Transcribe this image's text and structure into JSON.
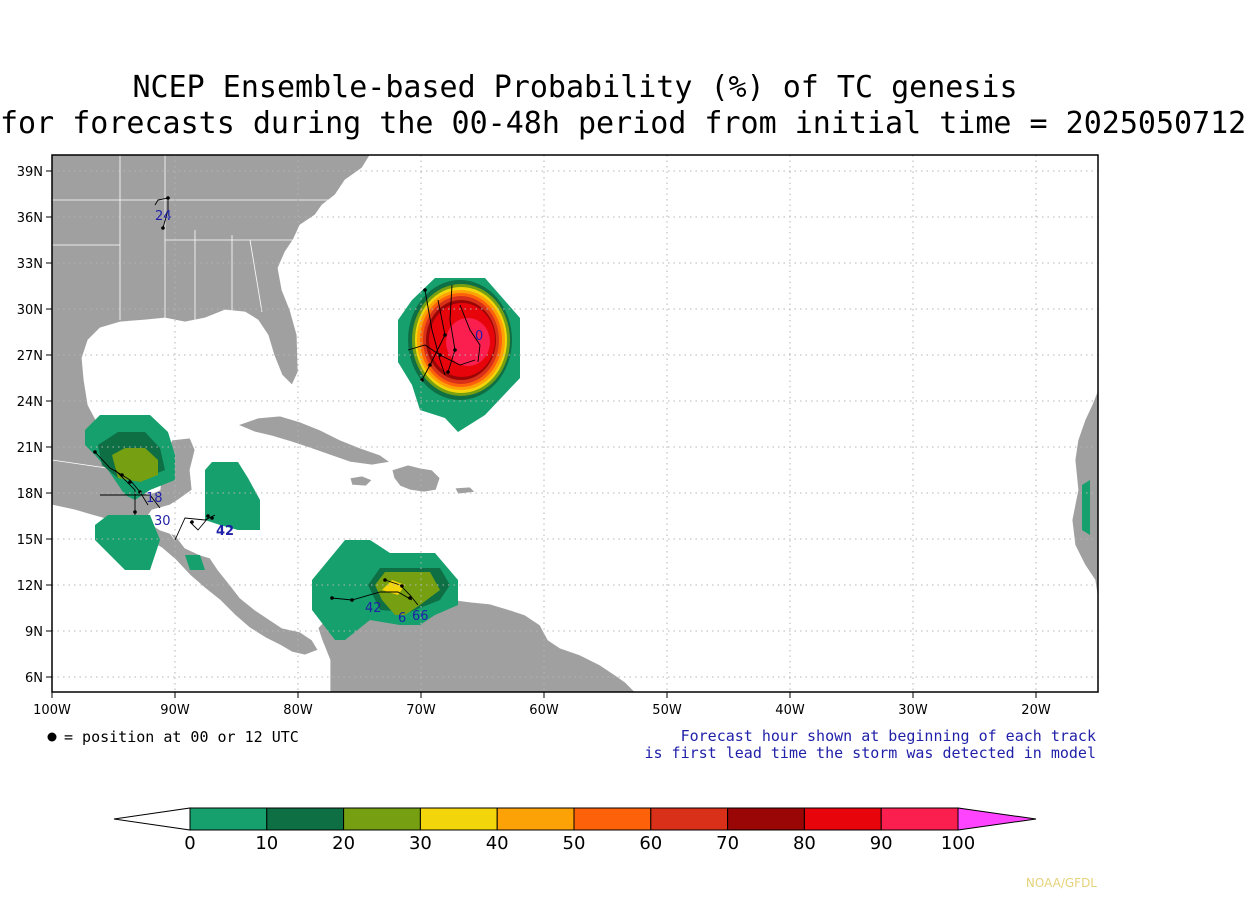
{
  "title": {
    "line1": "NCEP Ensemble-based Probability (%) of TC genesis",
    "line2": "for forecasts during the 00-48h period from initial time = 2025050712"
  },
  "lat_labels": [
    "39N",
    "36N",
    "33N",
    "30N",
    "27N",
    "24N",
    "21N",
    "18N",
    "15N",
    "12N",
    "9N",
    "6N"
  ],
  "lon_labels": [
    "100W",
    "90W",
    "80W",
    "70W",
    "60W",
    "50W",
    "40W",
    "30W",
    "20W"
  ],
  "legend": {
    "position_note": "= position at 00 or 12 UTC",
    "forecast_note_1": "Forecast hour shown at beginning of each track",
    "forecast_note_2": "is first lead time the storm was detected in model"
  },
  "colorbar": {
    "labels": [
      "0",
      "10",
      "20",
      "30",
      "40",
      "50",
      "60",
      "70",
      "80",
      "90",
      "100"
    ],
    "colors": [
      "#16a06e",
      "#0e6f45",
      "#76a011",
      "#f2d50a",
      "#fca206",
      "#fd620b",
      "#d9301a",
      "#9a0505",
      "#e8040b",
      "#fb1f4f"
    ],
    "over_color": "#ff44ff",
    "under_color": "#ffffff"
  },
  "track_labels": [
    {
      "text": "24"
    },
    {
      "text": "18"
    },
    {
      "text": "30"
    },
    {
      "text": "42"
    },
    {
      "text": "42"
    },
    {
      "text": "66"
    },
    {
      "text": "6"
    },
    {
      "text": "0"
    }
  ],
  "colors": {
    "land": "#a0a0a0",
    "ocean": "#ffffff",
    "grid": "#b4b4b4",
    "note_blue": "#1f1fa8",
    "credit": "#e6d27a"
  },
  "credit": "NOAA/GFDL"
}
